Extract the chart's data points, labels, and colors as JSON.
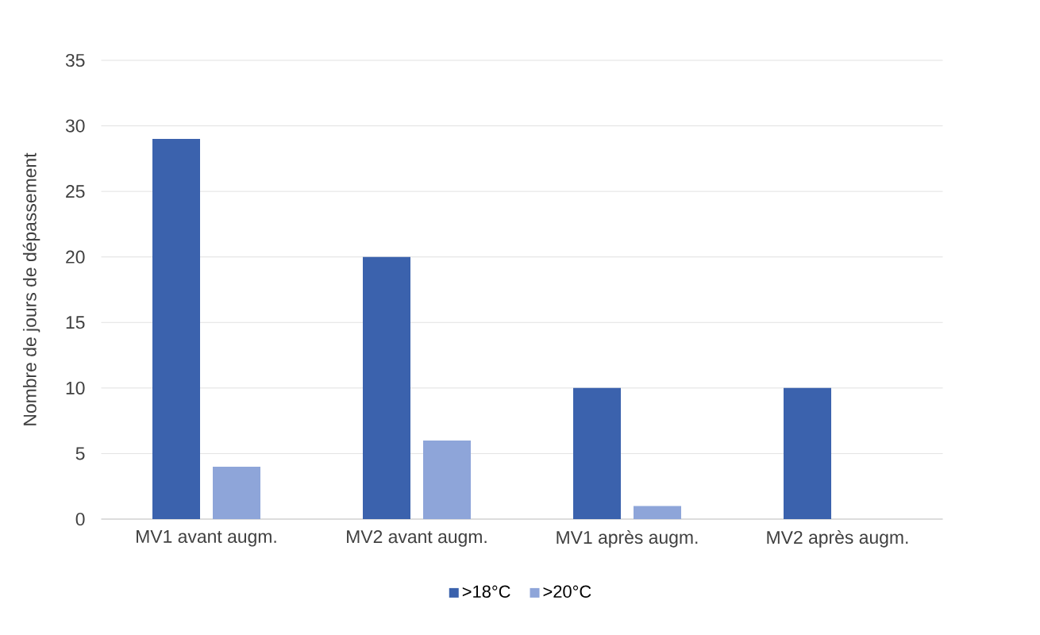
{
  "chart_data": {
    "type": "bar",
    "ylabel": "Nombre de jours de dépassement",
    "categories": [
      "MV1 avant augm.",
      "MV2 avant augm.",
      "MV1 après augm.",
      "MV2 après augm."
    ],
    "series": [
      {
        "name": ">18°C",
        "color": "#3b62ad",
        "values": [
          29,
          20,
          10,
          10
        ]
      },
      {
        "name": ">20°C",
        "color": "#8ea5d9",
        "values": [
          4,
          6,
          1,
          0
        ]
      }
    ],
    "ylim": [
      0,
      35
    ],
    "yticks": [
      0,
      5,
      10,
      15,
      20,
      25,
      30,
      35
    ],
    "grid": "y",
    "legend": "bottom"
  }
}
